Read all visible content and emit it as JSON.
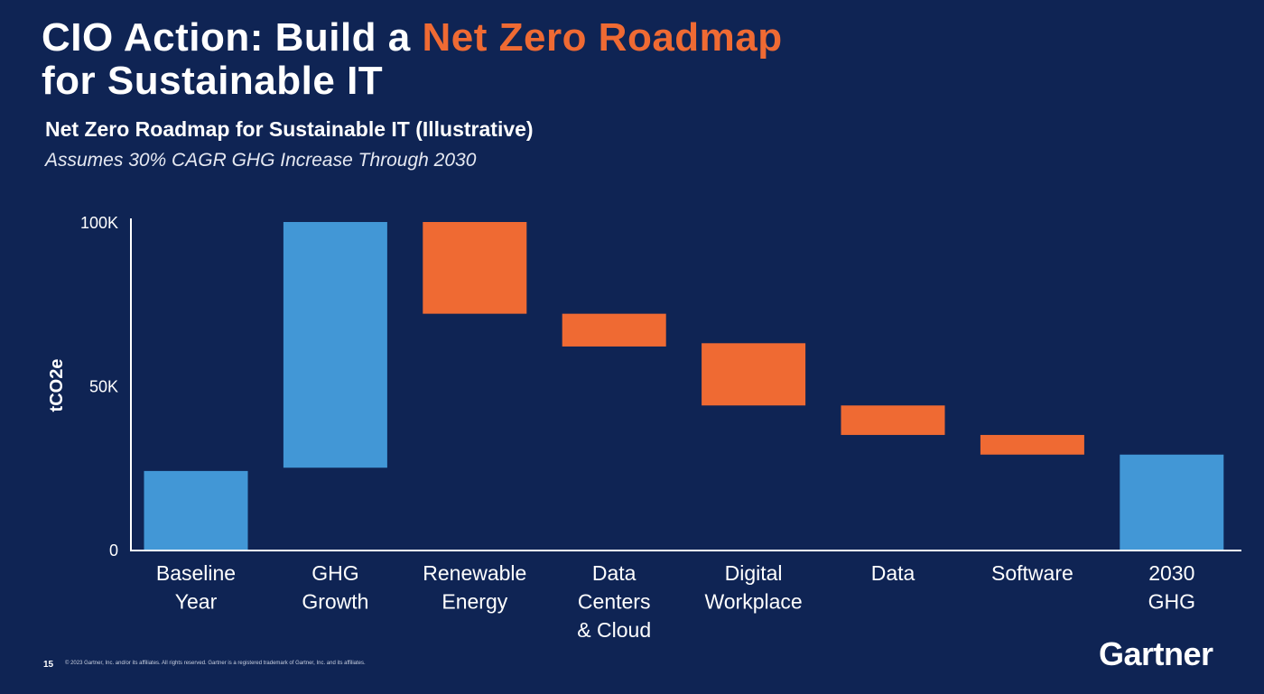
{
  "slide": {
    "title_line1_prefix": "CIO Action: Build a ",
    "title_line1_accent": "Net Zero Roadmap",
    "title_line2": "for Sustainable IT",
    "page_number": "15",
    "copyright": "© 2023 Gartner, Inc. and/or its affiliates. All rights reserved. Gartner is a registered trademark of Gartner, Inc. and its affiliates.",
    "logo_text": "Gartner"
  },
  "colors": {
    "background": "#0f2454",
    "blue_bar": "#4297d6",
    "orange_bar": "#ef6a33",
    "accent_text": "#ef6a33"
  },
  "chart_data": {
    "type": "bar",
    "subtype": "waterfall",
    "title": "Net Zero Roadmap for Sustainable IT (Illustrative)",
    "subtitle": "Assumes 30% CAGR GHG Increase Through 2030",
    "ylabel": "tCO2e",
    "ylim": [
      0,
      100000
    ],
    "yticks": [
      {
        "value": 0,
        "label": "0"
      },
      {
        "value": 50000,
        "label": "50K"
      },
      {
        "value": 100000,
        "label": "100K"
      }
    ],
    "grid": false,
    "legend": "none",
    "categories": [
      [
        "Baseline",
        "Year"
      ],
      [
        "GHG",
        "Growth"
      ],
      [
        "Renewable",
        "Energy"
      ],
      [
        "Data",
        "Centers",
        "& Cloud"
      ],
      [
        "Digital",
        "Workplace"
      ],
      [
        "Data"
      ],
      [
        "Software"
      ],
      [
        "2030",
        "GHG"
      ]
    ],
    "bars": [
      {
        "start": 0,
        "end": 24000,
        "kind": "total"
      },
      {
        "start": 25000,
        "end": 100000,
        "kind": "increase"
      },
      {
        "start": 72000,
        "end": 100000,
        "kind": "decrease"
      },
      {
        "start": 62000,
        "end": 72000,
        "kind": "decrease"
      },
      {
        "start": 44000,
        "end": 63000,
        "kind": "decrease"
      },
      {
        "start": 35000,
        "end": 44000,
        "kind": "decrease"
      },
      {
        "start": 29000,
        "end": 35000,
        "kind": "decrease"
      },
      {
        "start": 0,
        "end": 29000,
        "kind": "total"
      }
    ]
  }
}
